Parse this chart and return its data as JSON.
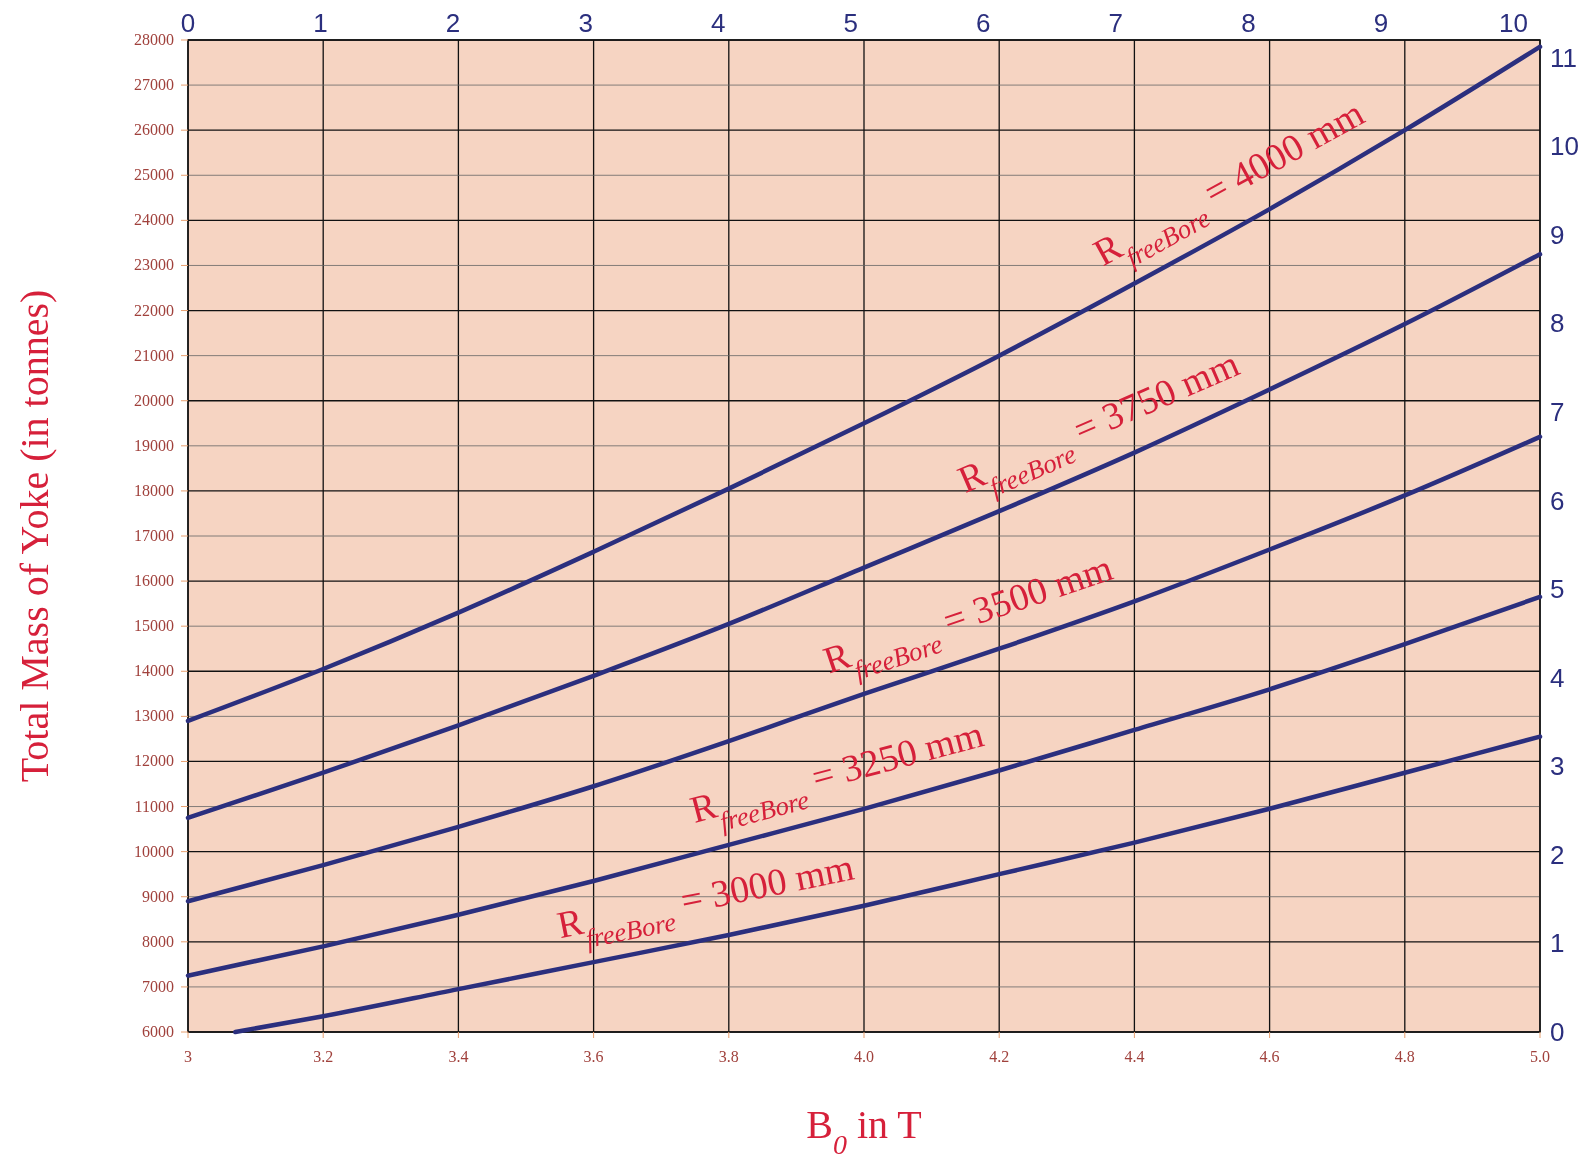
{
  "chart_data": {
    "type": "line",
    "xlabel": "B$_{0}$ in T",
    "ylabel": "Total Mass of Yoke (in tonnes)",
    "x": [
      3.0,
      3.2,
      3.4,
      3.6,
      3.8,
      4.0,
      4.2,
      4.4,
      4.6,
      4.8,
      5.0
    ],
    "series": [
      {
        "name": "R$_{freeBore}$ = 4000 mm",
        "color": "#2b2f7e",
        "values": [
          12900,
          14050,
          15300,
          16650,
          18050,
          19500,
          21000,
          22600,
          24250,
          26000,
          27850
        ]
      },
      {
        "name": "R$_{freeBore}$ = 3750 mm",
        "color": "#2b2f7e",
        "values": [
          10750,
          11750,
          12800,
          13900,
          15050,
          16300,
          17550,
          18850,
          20250,
          21700,
          23250
        ]
      },
      {
        "name": "R$_{freeBore}$ = 3500 mm",
        "color": "#2b2f7e",
        "values": [
          8900,
          9700,
          10550,
          11450,
          12450,
          13500,
          14500,
          15550,
          16700,
          17900,
          19200
        ]
      },
      {
        "name": "R$_{freeBore}$ = 3250 mm",
        "color": "#2b2f7e",
        "values": [
          7250,
          7900,
          8600,
          9350,
          10150,
          10950,
          11800,
          12700,
          13600,
          14600,
          15650
        ]
      },
      {
        "name": "R$_{freeBore}$ = 3000 mm",
        "color": "#2b2f7e",
        "x": [
          3.07,
          3.2,
          3.4,
          3.6,
          3.8,
          4.0,
          4.2,
          4.4,
          4.6,
          4.8,
          5.0
        ],
        "values": [
          6000,
          6350,
          6950,
          7550,
          8150,
          8800,
          9500,
          10200,
          10950,
          11750,
          12550
        ]
      }
    ],
    "xlim": [
      3,
      5
    ],
    "xticks": [
      3,
      3.2,
      3.4,
      3.6,
      3.8,
      {
        "value": 4,
        "label": "4.0"
      },
      4.2,
      4.4,
      4.6,
      4.8,
      {
        "value": 5,
        "label": "5.0"
      }
    ],
    "ylim": [
      6000,
      28000
    ],
    "yticks": [
      6000,
      7000,
      8000,
      9000,
      10000,
      11000,
      12000,
      13000,
      14000,
      15000,
      16000,
      17000,
      18000,
      19000,
      20000,
      21000,
      22000,
      23000,
      24000,
      25000,
      26000,
      27000,
      28000
    ],
    "x2lim": [
      0,
      10.2
    ],
    "x2ticks": [
      0,
      1,
      2,
      3,
      4,
      5,
      6,
      7,
      8,
      9,
      10
    ],
    "y2lim": [
      0,
      11.2
    ],
    "y2ticks": [
      0,
      1,
      2,
      3,
      4,
      5,
      6,
      7,
      8,
      9,
      10,
      11
    ],
    "grid": true,
    "marker": "none",
    "line_style": "solid"
  }
}
